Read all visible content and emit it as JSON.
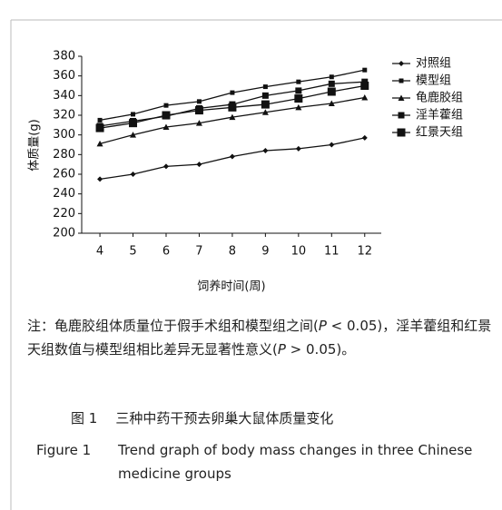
{
  "chart_data": {
    "type": "line",
    "y_label": "体质量(g)",
    "x_label": "饲养时间(周)",
    "x": [
      4,
      5,
      6,
      7,
      8,
      9,
      10,
      11,
      12
    ],
    "xlim": [
      3.45,
      12.5
    ],
    "xticks": [
      4,
      5,
      6,
      7,
      8,
      9,
      10,
      11,
      12
    ],
    "ylim": [
      200,
      380
    ],
    "yticks": [
      200,
      220,
      240,
      260,
      280,
      300,
      320,
      340,
      360,
      380
    ],
    "series": [
      {
        "name": "对照组",
        "color": "#111111",
        "marker": "diamond",
        "values": [
          255,
          260,
          268,
          270,
          278,
          284,
          286,
          290,
          297
        ]
      },
      {
        "name": "模型组",
        "color": "#111111",
        "marker": "small-square",
        "values": [
          315,
          321,
          330,
          334,
          343,
          349,
          354,
          359,
          366
        ]
      },
      {
        "name": "龟鹿胶组",
        "color": "#111111",
        "marker": "triangle",
        "values": [
          291,
          300,
          308,
          312,
          318,
          323,
          328,
          332,
          338
        ]
      },
      {
        "name": "淫羊藿组",
        "color": "#111111",
        "marker": "square",
        "values": [
          309,
          314,
          319,
          327,
          331,
          340,
          345,
          352,
          354
        ]
      },
      {
        "name": "红景天组",
        "color": "#111111",
        "marker": "big-square",
        "values": [
          307,
          312,
          320,
          325,
          328,
          331,
          337,
          344,
          350
        ]
      }
    ]
  },
  "note": [
    "注：龟鹿胶组体质量位于假手术组和模型组之间(",
    "P",
    " < 0.05)，淫羊藿组和红景天组数值与模型组相比差异无显著性意义(",
    "P",
    " > 0.05)。"
  ],
  "caption": {
    "cn_label": "图 1",
    "cn_text": "三种中药干预去卵巢大鼠体质量变化",
    "en_label": "Figure 1",
    "en_text": "Trend graph of body mass changes in three Chinese medicine groups"
  }
}
